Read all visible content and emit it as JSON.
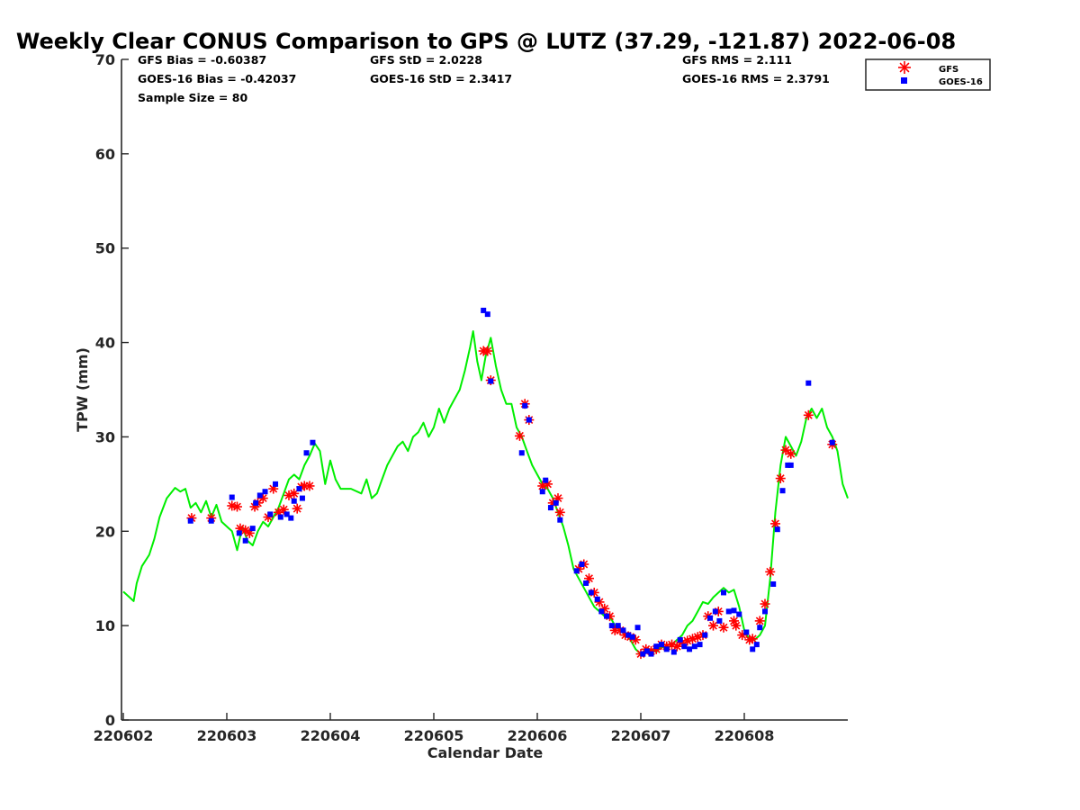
{
  "chart_data": {
    "type": "scatter",
    "title": "Weekly Clear CONUS Comparison to GPS @ LUTZ (37.29, -121.87) 2022-06-08",
    "xlabel": "Calendar Date",
    "ylabel": "TPW (mm)",
    "xlim": [
      0,
      7
    ],
    "ylim": [
      0,
      70
    ],
    "x_ticks": [
      0,
      1,
      2,
      3,
      4,
      5,
      6
    ],
    "x_tick_labels": [
      "220602",
      "220603",
      "220604",
      "220605",
      "220606",
      "220607",
      "220608"
    ],
    "y_ticks": [
      0,
      10,
      20,
      30,
      40,
      50,
      60,
      70
    ],
    "y_tick_labels": [
      "0",
      "10",
      "20",
      "30",
      "40",
      "50",
      "60",
      "70"
    ],
    "grid": false,
    "legend_position": "top-right",
    "stats": {
      "gfs_bias": "GFS Bias = -0.60387",
      "goes_bias": "GOES-16 Bias = -0.42037",
      "sample_size": "Sample Size = 80",
      "gfs_std": "GFS StD = 2.0228",
      "goes_std": "GOES-16 StD = 2.3417",
      "gfs_rms": "GFS RMS = 2.111",
      "goes_rms": "GOES-16 RMS = 2.3791"
    },
    "colors": {
      "gps": "#00ee00",
      "gfs": "#ff0000",
      "goes": "#0000ff"
    },
    "series": [
      {
        "name": "GPS",
        "type": "line",
        "in_legend": false,
        "points": [
          [
            0,
            13.6
          ],
          [
            0.05,
            13.1
          ],
          [
            0.1,
            12.6
          ],
          [
            0.13,
            14.5
          ],
          [
            0.18,
            16.3
          ],
          [
            0.25,
            17.5
          ],
          [
            0.3,
            19.2
          ],
          [
            0.35,
            21.5
          ],
          [
            0.42,
            23.5
          ],
          [
            0.5,
            24.6
          ],
          [
            0.55,
            24.2
          ],
          [
            0.6,
            24.5
          ],
          [
            0.65,
            22.5
          ],
          [
            0.7,
            23
          ],
          [
            0.75,
            22
          ],
          [
            0.8,
            23.2
          ],
          [
            0.85,
            21.5
          ],
          [
            0.9,
            22.8
          ],
          [
            0.95,
            21
          ],
          [
            1.0,
            20.5
          ],
          [
            1.05,
            20
          ],
          [
            1.1,
            18
          ],
          [
            1.15,
            20.5
          ],
          [
            1.2,
            19
          ],
          [
            1.25,
            18.5
          ],
          [
            1.3,
            20
          ],
          [
            1.35,
            21
          ],
          [
            1.4,
            20.5
          ],
          [
            1.45,
            21.5
          ],
          [
            1.5,
            22.5
          ],
          [
            1.55,
            24
          ],
          [
            1.6,
            25.5
          ],
          [
            1.65,
            26
          ],
          [
            1.7,
            25.5
          ],
          [
            1.75,
            27
          ],
          [
            1.8,
            28
          ],
          [
            1.85,
            29.3
          ],
          [
            1.9,
            28.5
          ],
          [
            1.95,
            25
          ],
          [
            2.0,
            27.5
          ],
          [
            2.05,
            25.5
          ],
          [
            2.1,
            24.5
          ],
          [
            2.2,
            24.5
          ],
          [
            2.3,
            24
          ],
          [
            2.35,
            25.5
          ],
          [
            2.4,
            23.5
          ],
          [
            2.45,
            24
          ],
          [
            2.5,
            25.5
          ],
          [
            2.55,
            27
          ],
          [
            2.6,
            28
          ],
          [
            2.65,
            29
          ],
          [
            2.7,
            29.5
          ],
          [
            2.75,
            28.5
          ],
          [
            2.8,
            30
          ],
          [
            2.85,
            30.5
          ],
          [
            2.9,
            31.5
          ],
          [
            2.95,
            30
          ],
          [
            3.0,
            31
          ],
          [
            3.05,
            33
          ],
          [
            3.1,
            31.5
          ],
          [
            3.15,
            33
          ],
          [
            3.2,
            34
          ],
          [
            3.25,
            35
          ],
          [
            3.3,
            37
          ],
          [
            3.35,
            39.5
          ],
          [
            3.38,
            41.2
          ],
          [
            3.42,
            38
          ],
          [
            3.46,
            36
          ],
          [
            3.5,
            38.5
          ],
          [
            3.55,
            40.5
          ],
          [
            3.6,
            37.5
          ],
          [
            3.65,
            35
          ],
          [
            3.7,
            33.5
          ],
          [
            3.75,
            33.5
          ],
          [
            3.8,
            31
          ],
          [
            3.85,
            30
          ],
          [
            3.9,
            28.5
          ],
          [
            3.95,
            27
          ],
          [
            4.0,
            26
          ],
          [
            4.05,
            25
          ],
          [
            4.1,
            24.5
          ],
          [
            4.15,
            23.5
          ],
          [
            4.2,
            22
          ],
          [
            4.25,
            20.5
          ],
          [
            4.3,
            18.5
          ],
          [
            4.35,
            16
          ],
          [
            4.4,
            15
          ],
          [
            4.45,
            14
          ],
          [
            4.5,
            13
          ],
          [
            4.55,
            12
          ],
          [
            4.6,
            11.5
          ],
          [
            4.65,
            11
          ],
          [
            4.7,
            11
          ],
          [
            4.75,
            10
          ],
          [
            4.8,
            9.5
          ],
          [
            4.85,
            9
          ],
          [
            4.9,
            8.5
          ],
          [
            4.95,
            7.5
          ],
          [
            5.0,
            7
          ],
          [
            5.05,
            7.5
          ],
          [
            5.1,
            7.5
          ],
          [
            5.15,
            7.2
          ],
          [
            5.2,
            7.8
          ],
          [
            5.25,
            7.5
          ],
          [
            5.3,
            8
          ],
          [
            5.35,
            8.5
          ],
          [
            5.4,
            9
          ],
          [
            5.45,
            10
          ],
          [
            5.5,
            10.5
          ],
          [
            5.55,
            11.5
          ],
          [
            5.6,
            12.5
          ],
          [
            5.65,
            12.3
          ],
          [
            5.7,
            13
          ],
          [
            5.75,
            13.5
          ],
          [
            5.8,
            14
          ],
          [
            5.85,
            13.5
          ],
          [
            5.9,
            13.8
          ],
          [
            5.95,
            12
          ],
          [
            6.0,
            9.5
          ],
          [
            6.05,
            8.5
          ],
          [
            6.1,
            8.5
          ],
          [
            6.15,
            9
          ],
          [
            6.2,
            10
          ],
          [
            6.25,
            15
          ],
          [
            6.3,
            22
          ],
          [
            6.35,
            27
          ],
          [
            6.4,
            30
          ],
          [
            6.45,
            29
          ],
          [
            6.5,
            28
          ],
          [
            6.55,
            29.5
          ],
          [
            6.6,
            32
          ],
          [
            6.65,
            33
          ],
          [
            6.7,
            32
          ],
          [
            6.75,
            33
          ],
          [
            6.8,
            31
          ],
          [
            6.85,
            30
          ],
          [
            6.9,
            28.5
          ],
          [
            6.95,
            25
          ],
          [
            7.0,
            23.5
          ]
        ]
      },
      {
        "name": "GFS",
        "type": "scatter",
        "marker": "asterisk",
        "points": [
          [
            0.66,
            21.4
          ],
          [
            0.85,
            21.4
          ],
          [
            1.05,
            22.7
          ],
          [
            1.1,
            22.6
          ],
          [
            1.13,
            20.3
          ],
          [
            1.18,
            20.1
          ],
          [
            1.22,
            19.8
          ],
          [
            1.27,
            22.6
          ],
          [
            1.3,
            23
          ],
          [
            1.35,
            23.5
          ],
          [
            1.4,
            21.5
          ],
          [
            1.45,
            24.5
          ],
          [
            1.5,
            22
          ],
          [
            1.55,
            22.3
          ],
          [
            1.6,
            23.8
          ],
          [
            1.65,
            24
          ],
          [
            1.68,
            22.4
          ],
          [
            1.72,
            24.7
          ],
          [
            1.75,
            24.8
          ],
          [
            1.8,
            24.8
          ],
          [
            3.48,
            39.1
          ],
          [
            3.52,
            39.1
          ],
          [
            3.55,
            36
          ],
          [
            3.83,
            30.1
          ],
          [
            3.88,
            33.5
          ],
          [
            3.92,
            31.8
          ],
          [
            4.05,
            24.8
          ],
          [
            4.1,
            25
          ],
          [
            4.15,
            23
          ],
          [
            4.2,
            23.5
          ],
          [
            4.22,
            22
          ],
          [
            4.4,
            16
          ],
          [
            4.45,
            16.5
          ],
          [
            4.5,
            15
          ],
          [
            4.55,
            13.5
          ],
          [
            4.6,
            12.5
          ],
          [
            4.65,
            11.8
          ],
          [
            4.7,
            11
          ],
          [
            4.75,
            9.5
          ],
          [
            4.8,
            9.5
          ],
          [
            4.85,
            9
          ],
          [
            4.9,
            8.8
          ],
          [
            4.95,
            8.5
          ],
          [
            5.0,
            7
          ],
          [
            5.05,
            7.5
          ],
          [
            5.1,
            7.3
          ],
          [
            5.15,
            7.5
          ],
          [
            5.2,
            8
          ],
          [
            5.25,
            7.8
          ],
          [
            5.3,
            8
          ],
          [
            5.35,
            7.8
          ],
          [
            5.4,
            8.2
          ],
          [
            5.45,
            8.4
          ],
          [
            5.5,
            8.6
          ],
          [
            5.55,
            8.8
          ],
          [
            5.6,
            9
          ],
          [
            5.65,
            11
          ],
          [
            5.7,
            10
          ],
          [
            5.75,
            11.5
          ],
          [
            5.8,
            9.8
          ],
          [
            5.9,
            10.5
          ],
          [
            5.92,
            10
          ],
          [
            5.98,
            9
          ],
          [
            6.05,
            8.5
          ],
          [
            6.08,
            8.6
          ],
          [
            6.15,
            10.5
          ],
          [
            6.2,
            12.3
          ],
          [
            6.25,
            15.7
          ],
          [
            6.3,
            20.8
          ],
          [
            6.35,
            25.6
          ],
          [
            6.4,
            28.6
          ],
          [
            6.45,
            28.2
          ],
          [
            6.62,
            32.3
          ],
          [
            6.85,
            29.2
          ]
        ]
      },
      {
        "name": "GOES-16",
        "type": "scatter",
        "marker": "square",
        "points": [
          [
            0.65,
            21.1
          ],
          [
            0.85,
            21.1
          ],
          [
            1.05,
            23.6
          ],
          [
            1.12,
            19.8
          ],
          [
            1.18,
            19
          ],
          [
            1.25,
            20.3
          ],
          [
            1.28,
            23
          ],
          [
            1.32,
            23.8
          ],
          [
            1.37,
            24.2
          ],
          [
            1.42,
            21.8
          ],
          [
            1.47,
            25
          ],
          [
            1.52,
            21.5
          ],
          [
            1.58,
            21.8
          ],
          [
            1.62,
            21.4
          ],
          [
            1.65,
            23.2
          ],
          [
            1.7,
            24.5
          ],
          [
            1.73,
            23.5
          ],
          [
            1.77,
            28.3
          ],
          [
            1.83,
            29.4
          ],
          [
            3.48,
            43.4
          ],
          [
            3.52,
            43
          ],
          [
            3.55,
            35.9
          ],
          [
            3.85,
            28.3
          ],
          [
            3.88,
            33.3
          ],
          [
            3.92,
            31.8
          ],
          [
            4.05,
            24.2
          ],
          [
            4.08,
            25.4
          ],
          [
            4.13,
            22.5
          ],
          [
            4.18,
            23
          ],
          [
            4.22,
            21.2
          ],
          [
            4.38,
            15.8
          ],
          [
            4.43,
            16.5
          ],
          [
            4.47,
            14.5
          ],
          [
            4.52,
            13.5
          ],
          [
            4.58,
            12.8
          ],
          [
            4.62,
            11.5
          ],
          [
            4.67,
            11
          ],
          [
            4.72,
            10
          ],
          [
            4.78,
            10
          ],
          [
            4.83,
            9.5
          ],
          [
            4.88,
            9
          ],
          [
            4.92,
            8.8
          ],
          [
            4.97,
            9.8
          ],
          [
            5.02,
            7
          ],
          [
            5.06,
            7.3
          ],
          [
            5.1,
            7
          ],
          [
            5.15,
            7.8
          ],
          [
            5.2,
            8
          ],
          [
            5.25,
            7.5
          ],
          [
            5.32,
            7.2
          ],
          [
            5.38,
            8.5
          ],
          [
            5.42,
            7.8
          ],
          [
            5.47,
            7.5
          ],
          [
            5.52,
            7.8
          ],
          [
            5.57,
            8
          ],
          [
            5.62,
            9
          ],
          [
            5.67,
            10.8
          ],
          [
            5.72,
            11.5
          ],
          [
            5.76,
            10.5
          ],
          [
            5.8,
            13.5
          ],
          [
            5.85,
            11.5
          ],
          [
            5.9,
            11.6
          ],
          [
            5.95,
            11.2
          ],
          [
            6.02,
            9.3
          ],
          [
            6.08,
            7.5
          ],
          [
            6.12,
            8
          ],
          [
            6.15,
            9.8
          ],
          [
            6.2,
            11.5
          ],
          [
            6.28,
            14.4
          ],
          [
            6.32,
            20.2
          ],
          [
            6.37,
            24.3
          ],
          [
            6.42,
            27
          ],
          [
            6.45,
            27
          ],
          [
            6.62,
            35.7
          ],
          [
            6.85,
            29.4
          ]
        ]
      }
    ]
  }
}
